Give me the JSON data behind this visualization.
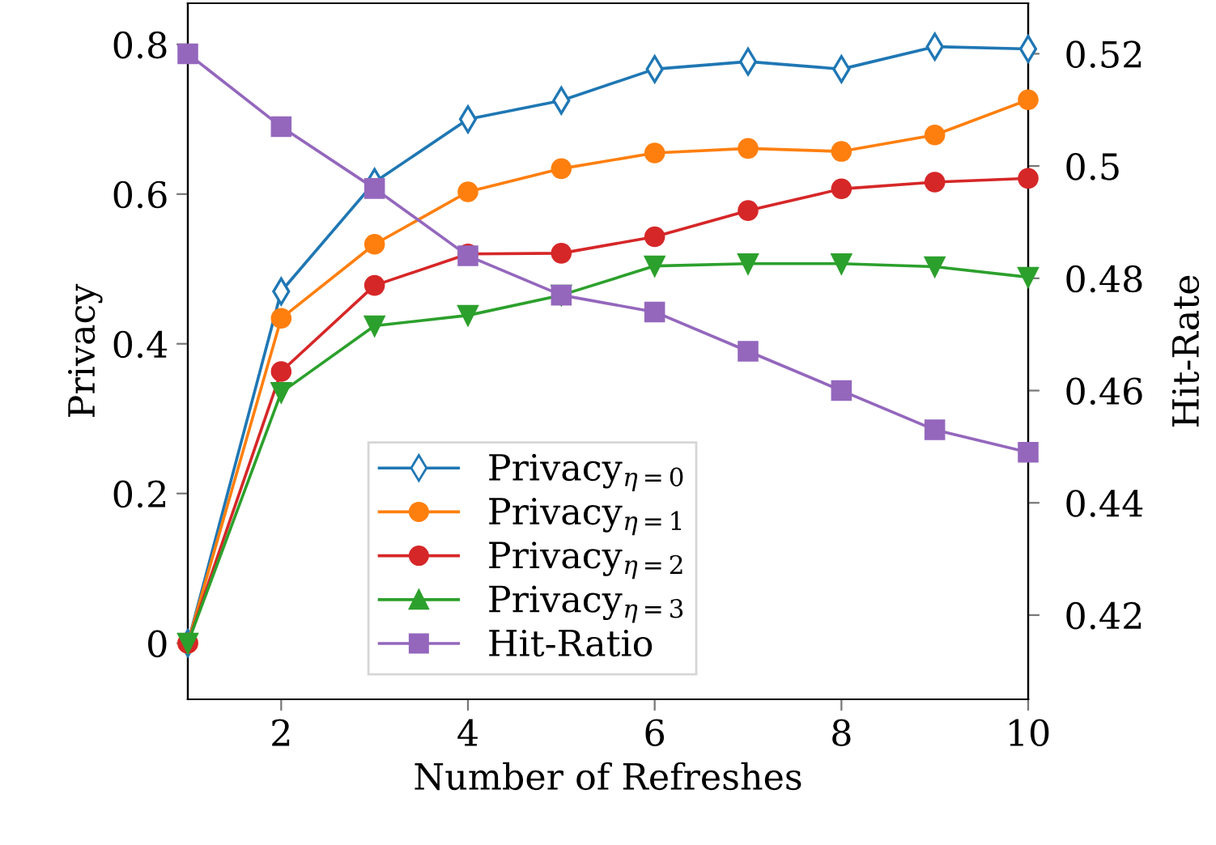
{
  "chart_data": {
    "type": "line",
    "xlabel": "Number of Refreshes",
    "ylabel": "Privacy",
    "y2label": "Hit-Rate",
    "x": [
      1,
      2,
      3,
      4,
      5,
      6,
      7,
      8,
      9,
      10
    ],
    "xlim": [
      1,
      10
    ],
    "xticks": [
      2,
      4,
      6,
      8,
      10
    ],
    "ylim": [
      -0.075,
      0.855
    ],
    "yticks": [
      0,
      0.2,
      0.4,
      0.6,
      0.8
    ],
    "y2lim": [
      0.405,
      0.529
    ],
    "y2ticks": [
      0.42,
      0.44,
      0.46,
      0.48,
      0.5,
      0.52
    ],
    "grid": false,
    "legend": "bottom",
    "series": [
      {
        "name": "Privacy$_{η=0}$",
        "color": "#1f77b4",
        "marker": "diamond",
        "values": [
          0,
          0.47,
          0.616,
          0.7,
          0.725,
          0.767,
          0.777,
          0.767,
          0.797,
          0.794
        ]
      },
      {
        "name": "Privacy$_{η=1}$",
        "color": "#ff7f0e",
        "marker": "circle",
        "values": [
          0,
          0.434,
          0.533,
          0.603,
          0.634,
          0.655,
          0.661,
          0.657,
          0.679,
          0.726
        ]
      },
      {
        "name": "Privacy$_{η=2}$",
        "color": "#d62728",
        "marker": "circle",
        "values": [
          0,
          0.363,
          0.478,
          0.52,
          0.521,
          0.543,
          0.578,
          0.607,
          0.616,
          0.621
        ]
      },
      {
        "name": "Privacy$_{η=3}$",
        "color": "#2ca02c",
        "marker": "triangle",
        "values": [
          0,
          0.335,
          0.424,
          0.438,
          0.465,
          0.504,
          0.507,
          0.507,
          0.503,
          0.489
        ]
      },
      {
        "name": "Hit-Ratio",
        "color": "#9467bd",
        "marker": "square",
        "axis": "y2",
        "values": [
          0.52,
          0.507,
          0.496,
          0.484,
          0.477,
          0.474,
          0.467,
          0.46,
          0.453,
          0.449
        ]
      }
    ]
  }
}
